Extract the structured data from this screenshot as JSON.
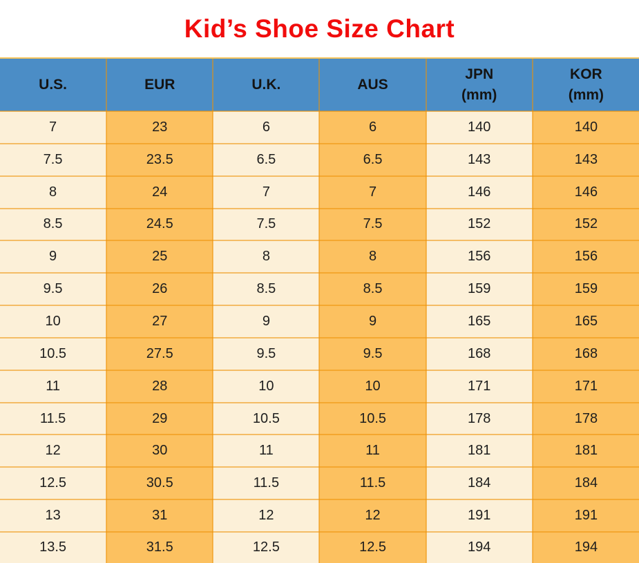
{
  "title": "Kid’s Shoe Size Chart",
  "chart_data": {
    "type": "table",
    "title": "Kid’s Shoe Size Chart",
    "columns": [
      {
        "label": "U.S.",
        "sublabel": ""
      },
      {
        "label": "EUR",
        "sublabel": ""
      },
      {
        "label": "U.K.",
        "sublabel": ""
      },
      {
        "label": "AUS",
        "sublabel": ""
      },
      {
        "label": "JPN",
        "sublabel": "(mm)"
      },
      {
        "label": "KOR",
        "sublabel": "(mm)"
      }
    ],
    "rows": [
      [
        "7",
        "23",
        "6",
        "6",
        "140",
        "140"
      ],
      [
        "7.5",
        "23.5",
        "6.5",
        "6.5",
        "143",
        "143"
      ],
      [
        "8",
        "24",
        "7",
        "7",
        "146",
        "146"
      ],
      [
        "8.5",
        "24.5",
        "7.5",
        "7.5",
        "152",
        "152"
      ],
      [
        "9",
        "25",
        "8",
        "8",
        "156",
        "156"
      ],
      [
        "9.5",
        "26",
        "8.5",
        "8.5",
        "159",
        "159"
      ],
      [
        "10",
        "27",
        "9",
        "9",
        "165",
        "165"
      ],
      [
        "10.5",
        "27.5",
        "9.5",
        "9.5",
        "168",
        "168"
      ],
      [
        "11",
        "28",
        "10",
        "10",
        "171",
        "171"
      ],
      [
        "11.5",
        "29",
        "10.5",
        "10.5",
        "178",
        "178"
      ],
      [
        "12",
        "30",
        "11",
        "11",
        "181",
        "181"
      ],
      [
        "12.5",
        "30.5",
        "11.5",
        "11.5",
        "184",
        "184"
      ],
      [
        "13",
        "31",
        "12",
        "12",
        "191",
        "191"
      ],
      [
        "13.5",
        "31.5",
        "12.5",
        "12.5",
        "194",
        "194"
      ]
    ]
  },
  "colors": {
    "title": "#F10C0C",
    "header_bg": "#4B8DC6",
    "column_light": "#FCF0D8",
    "column_orange": "#FCC160",
    "grid_border": "rgba(236,146,8,0.55)",
    "table_top_border": "#F6C45C",
    "text": "#1E1E1E"
  }
}
